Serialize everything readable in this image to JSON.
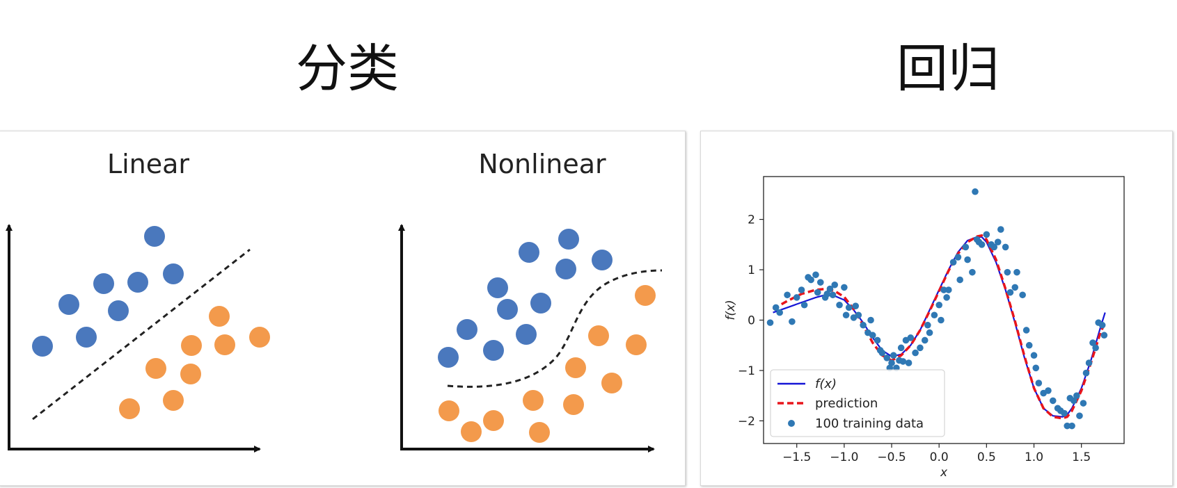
{
  "headings": {
    "classification": "分类",
    "regression": "回归"
  },
  "colors": {
    "blue": "#4a78bd",
    "orange": "#f39a4c",
    "dot": "#2f78b4",
    "truth": "#1515d6",
    "prediction": "#e8151b"
  },
  "classification": {
    "linear": {
      "title": "Linear"
    },
    "nonlinear": {
      "title": "Nonlinear"
    }
  },
  "chart_data": {
    "type": "scatter",
    "title": "",
    "xlabel": "x",
    "ylabel": "f(x)",
    "xlim": [
      -1.85,
      1.95
    ],
    "ylim": [
      -2.45,
      2.85
    ],
    "xticks": [
      -1.5,
      -1.0,
      -0.5,
      0.0,
      0.5,
      1.0,
      1.5
    ],
    "xtick_labels": [
      "−1.5",
      "−1.0",
      "−0.5",
      "0.0",
      "0.5",
      "1.0",
      "1.5"
    ],
    "yticks": [
      -2,
      -1,
      0,
      1,
      2
    ],
    "ytick_labels": [
      "−2",
      "−1",
      "0",
      "1",
      "2"
    ],
    "legend": {
      "position": "lower-left",
      "entries": [
        "f(x)",
        "prediction",
        "100 training data"
      ]
    },
    "series": [
      {
        "name": "f(x)",
        "kind": "line",
        "style": "solid",
        "x": [
          -1.75,
          -1.6,
          -1.45,
          -1.3,
          -1.2,
          -1.1,
          -1.0,
          -0.9,
          -0.8,
          -0.7,
          -0.6,
          -0.5,
          -0.4,
          -0.3,
          -0.2,
          -0.1,
          0.0,
          0.1,
          0.2,
          0.3,
          0.4,
          0.45,
          0.5,
          0.6,
          0.7,
          0.8,
          0.9,
          1.0,
          1.1,
          1.2,
          1.3,
          1.35,
          1.4,
          1.5,
          1.6,
          1.7,
          1.75
        ],
        "y": [
          0.15,
          0.25,
          0.35,
          0.45,
          0.5,
          0.48,
          0.4,
          0.2,
          -0.05,
          -0.35,
          -0.6,
          -0.72,
          -0.68,
          -0.5,
          -0.2,
          0.2,
          0.6,
          1.0,
          1.35,
          1.58,
          1.65,
          1.65,
          1.55,
          1.15,
          0.6,
          -0.05,
          -0.75,
          -1.35,
          -1.75,
          -1.9,
          -1.92,
          -1.88,
          -1.75,
          -1.35,
          -0.8,
          -0.15,
          0.15
        ]
      },
      {
        "name": "prediction",
        "kind": "line",
        "style": "dashed",
        "x": [
          -1.75,
          -1.6,
          -1.45,
          -1.3,
          -1.2,
          -1.1,
          -1.0,
          -0.9,
          -0.8,
          -0.7,
          -0.6,
          -0.5,
          -0.4,
          -0.3,
          -0.2,
          -0.1,
          0.0,
          0.1,
          0.2,
          0.3,
          0.4,
          0.45,
          0.5,
          0.6,
          0.7,
          0.8,
          0.9,
          1.0,
          1.1,
          1.2,
          1.3,
          1.35,
          1.4,
          1.5,
          1.6,
          1.7,
          1.75
        ],
        "y": [
          0.22,
          0.38,
          0.52,
          0.6,
          0.62,
          0.58,
          0.46,
          0.22,
          -0.1,
          -0.45,
          -0.7,
          -0.8,
          -0.7,
          -0.5,
          -0.2,
          0.18,
          0.58,
          0.98,
          1.32,
          1.55,
          1.66,
          1.68,
          1.6,
          1.2,
          0.62,
          -0.02,
          -0.72,
          -1.35,
          -1.75,
          -1.92,
          -1.95,
          -1.92,
          -1.8,
          -1.4,
          -0.85,
          -0.25,
          -0.05
        ]
      },
      {
        "name": "100 training data",
        "kind": "scatter",
        "x": [
          -1.78,
          -1.72,
          -1.68,
          -1.6,
          -1.55,
          -1.5,
          -1.45,
          -1.42,
          -1.38,
          -1.35,
          -1.3,
          -1.28,
          -1.25,
          -1.2,
          -1.18,
          -1.15,
          -1.12,
          -1.1,
          -1.05,
          -1.0,
          -0.98,
          -0.95,
          -0.9,
          -0.88,
          -0.85,
          -0.8,
          -0.75,
          -0.72,
          -0.7,
          -0.65,
          -0.62,
          -0.6,
          -0.55,
          -0.52,
          -0.5,
          -0.48,
          -0.45,
          -0.42,
          -0.4,
          -0.38,
          -0.35,
          -0.32,
          -0.3,
          -0.25,
          -0.2,
          -0.15,
          -0.12,
          -0.1,
          -0.05,
          0.0,
          0.02,
          0.05,
          0.08,
          0.1,
          0.15,
          0.2,
          0.22,
          0.28,
          0.3,
          0.35,
          0.38,
          0.4,
          0.42,
          0.45,
          0.5,
          0.55,
          0.58,
          0.62,
          0.65,
          0.7,
          0.72,
          0.75,
          0.8,
          0.82,
          0.88,
          0.92,
          0.95,
          1.0,
          1.02,
          1.05,
          1.1,
          1.15,
          1.2,
          1.25,
          1.28,
          1.32,
          1.35,
          1.38,
          1.4,
          1.42,
          1.45,
          1.48,
          1.52,
          1.55,
          1.58,
          1.62,
          1.65,
          1.68,
          1.72,
          1.74
        ],
        "y": [
          -0.05,
          0.25,
          0.15,
          0.5,
          -0.03,
          0.45,
          0.6,
          0.3,
          0.85,
          0.8,
          0.9,
          0.55,
          0.75,
          0.45,
          0.52,
          0.62,
          0.5,
          0.7,
          0.3,
          0.65,
          0.1,
          0.25,
          0.05,
          0.28,
          0.1,
          -0.1,
          -0.25,
          0.0,
          -0.3,
          -0.4,
          -0.6,
          -0.65,
          -0.75,
          -0.95,
          -0.85,
          -0.7,
          -0.95,
          -0.8,
          -0.55,
          -0.82,
          -0.4,
          -0.85,
          -0.35,
          -0.65,
          -0.55,
          -0.4,
          -0.1,
          -0.25,
          0.1,
          0.3,
          0.0,
          0.6,
          0.45,
          0.6,
          1.15,
          1.25,
          0.8,
          1.45,
          1.2,
          0.95,
          2.55,
          1.6,
          1.55,
          1.5,
          1.7,
          1.5,
          1.45,
          1.55,
          1.8,
          1.45,
          0.95,
          0.55,
          0.65,
          0.95,
          0.5,
          -0.2,
          -0.5,
          -0.7,
          -0.95,
          -1.25,
          -1.45,
          -1.4,
          -1.6,
          -1.75,
          -1.8,
          -1.85,
          -2.1,
          -1.55,
          -2.1,
          -1.6,
          -1.5,
          -1.9,
          -1.65,
          -1.05,
          -0.85,
          -0.45,
          -0.55,
          -0.05,
          -0.1,
          -0.3
        ]
      }
    ]
  }
}
